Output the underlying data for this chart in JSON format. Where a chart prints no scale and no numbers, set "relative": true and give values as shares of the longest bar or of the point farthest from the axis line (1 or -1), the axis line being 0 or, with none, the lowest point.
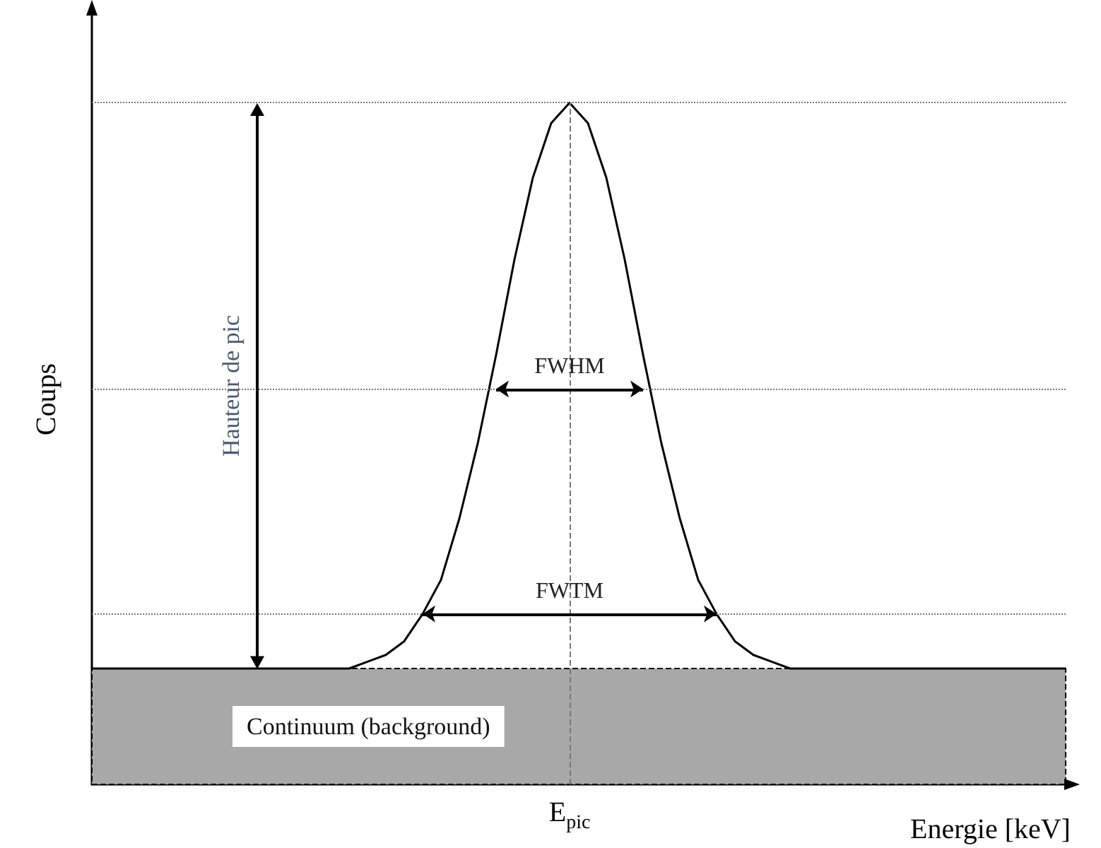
{
  "chart_data": {
    "type": "line",
    "relative": true,
    "xlabel": "Energie [keV]",
    "ylabel": "Coups",
    "categories": [
      null,
      null,
      null,
      null,
      null,
      null,
      null,
      null,
      null,
      null,
      null,
      null,
      null,
      null,
      null,
      null,
      null,
      null,
      null,
      null,
      null,
      null,
      null,
      null,
      null,
      null,
      null,
      null,
      null,
      null,
      null,
      null,
      null,
      null,
      null,
      null,
      null,
      null,
      null,
      null,
      null,
      null,
      null,
      null,
      null,
      null,
      null,
      null,
      null,
      null,
      null,
      null,
      null,
      null
    ],
    "series": [
      {
        "color": "#000000",
        "values": [
          0.17,
          0.17,
          0.17,
          0.17,
          0.17,
          0.17,
          0.17,
          0.17,
          0.17,
          0.17,
          0.17,
          0.17,
          0.17,
          0.17,
          0.17,
          0.18,
          0.19,
          0.21,
          0.25,
          0.3,
          0.39,
          0.5,
          0.63,
          0.77,
          0.89,
          0.97,
          1,
          0.97,
          0.89,
          0.77,
          0.63,
          0.5,
          0.39,
          0.3,
          0.25,
          0.21,
          0.19,
          0.18,
          0.17,
          0.17,
          0.17,
          0.17,
          0.17,
          0.17,
          0.17,
          0.17,
          0.17,
          0.17,
          0.17,
          0.17,
          0.17,
          0.17,
          0.17,
          0.17
        ]
      }
    ],
    "bands": [
      {
        "axis": "y",
        "from": 0,
        "to": 0.17,
        "label": "Continuum (background)",
        "color": "#a8a8a8"
      }
    ],
    "ref_lines": [
      {
        "axis": "y",
        "value": 1,
        "line_style": "dotted",
        "color": "#777777"
      },
      {
        "axis": "y",
        "value": 0.58,
        "line_style": "dotted",
        "color": "#777777"
      },
      {
        "axis": "y",
        "value": 0.25,
        "line_style": "dotted",
        "color": "#777777"
      },
      {
        "axis": "x",
        "label": "E$_{pic}$",
        "line_style": "dashed",
        "color": "#777777"
      }
    ],
    "annotations": [
      {
        "text": "FWHM",
        "y": 0.58
      },
      {
        "text": "FWTM",
        "y": 0.25
      },
      "Hauteur de pic"
    ]
  }
}
